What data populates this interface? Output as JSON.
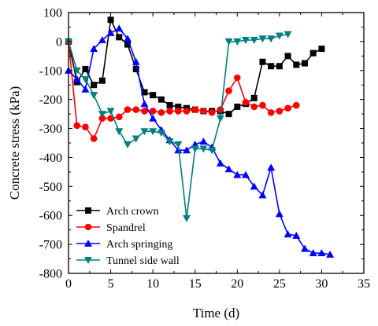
{
  "chart_data": {
    "type": "line",
    "title": "",
    "xlabel": "Time (d)",
    "ylabel": "Concrete stress (kPa)",
    "xlim": [
      0,
      35
    ],
    "ylim": [
      -800,
      100
    ],
    "xticks": [
      0,
      5,
      10,
      15,
      20,
      25,
      30,
      35
    ],
    "yticks": [
      100,
      0,
      -100,
      -200,
      -300,
      -400,
      -500,
      -600,
      -700,
      -800
    ],
    "grid": false,
    "legend_position": "bottom-left",
    "series": [
      {
        "name": "Arch crown",
        "color": "#000000",
        "marker": "square",
        "x": [
          0,
          1,
          2,
          3,
          4,
          5,
          6,
          7,
          8,
          9,
          10,
          11,
          12,
          13,
          14,
          15,
          16,
          17,
          18,
          19,
          20,
          21,
          22,
          23,
          24,
          25,
          26,
          27,
          28,
          29,
          30
        ],
        "y": [
          0,
          -140,
          -95,
          -150,
          -135,
          75,
          15,
          -10,
          -95,
          -175,
          -185,
          -200,
          -220,
          -225,
          -230,
          -235,
          -240,
          -240,
          -240,
          -250,
          -225,
          -215,
          -195,
          -70,
          -85,
          -85,
          -50,
          -80,
          -75,
          -40,
          -25
        ]
      },
      {
        "name": "Spandrel",
        "color": "#ff0000",
        "marker": "circle",
        "x": [
          0,
          1,
          2,
          3,
          4,
          5,
          6,
          7,
          8,
          9,
          10,
          11,
          12,
          13,
          14,
          15,
          16,
          17,
          18,
          19,
          20,
          21,
          22,
          23,
          24,
          25,
          26,
          27
        ],
        "y": [
          0,
          -290,
          -295,
          -335,
          -265,
          -265,
          -260,
          -235,
          -235,
          -240,
          -240,
          -245,
          -240,
          -240,
          -240,
          -235,
          -240,
          -245,
          -235,
          -170,
          -125,
          -210,
          -225,
          -220,
          -245,
          -240,
          -230,
          -220
        ]
      },
      {
        "name": "Arch springing",
        "color": "#0000ff",
        "marker": "triangle-up",
        "x": [
          0,
          1,
          2,
          3,
          4,
          5,
          6,
          7,
          8,
          9,
          10,
          11,
          12,
          13,
          14,
          15,
          16,
          17,
          18,
          19,
          20,
          21,
          22,
          23,
          24,
          25,
          26,
          27,
          28,
          29,
          30,
          31
        ],
        "y": [
          -100,
          -130,
          -165,
          -25,
          5,
          30,
          45,
          10,
          -70,
          -215,
          -265,
          -305,
          -340,
          -375,
          -375,
          -355,
          -345,
          -365,
          -420,
          -440,
          -460,
          -460,
          -500,
          -530,
          -435,
          -595,
          -665,
          -670,
          -715,
          -730,
          -730,
          -735
        ]
      },
      {
        "name": "Tunnel side wall",
        "color": "#008080",
        "marker": "triangle-down",
        "x": [
          0,
          1,
          2,
          3,
          4,
          5,
          6,
          7,
          8,
          9,
          10,
          11,
          12,
          13,
          14,
          15,
          16,
          17,
          18,
          19,
          20,
          21,
          22,
          23,
          24,
          25,
          26
        ],
        "y": [
          0,
          -100,
          -130,
          -185,
          -250,
          -240,
          -310,
          -355,
          -335,
          -310,
          -310,
          -315,
          -345,
          -355,
          -610,
          -370,
          -370,
          -375,
          -265,
          0,
          0,
          5,
          5,
          10,
          10,
          20,
          25
        ]
      }
    ]
  }
}
